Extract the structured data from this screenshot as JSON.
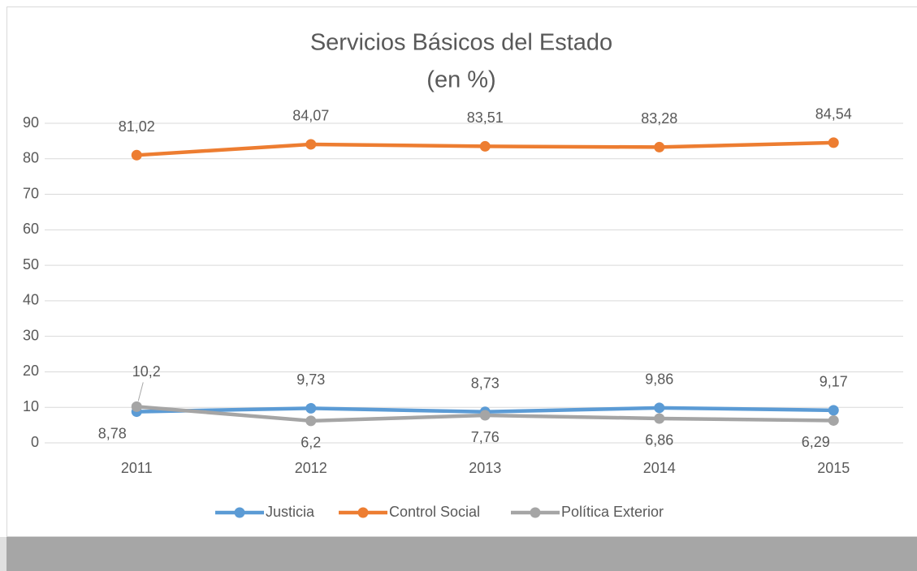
{
  "chart_data": {
    "type": "line",
    "title": "Servicios Básicos del Estado",
    "subtitle": "(en %)",
    "categories": [
      "2011",
      "2012",
      "2013",
      "2014",
      "2015"
    ],
    "series": [
      {
        "name": "Justicia",
        "color": "#5b9bd5",
        "values": [
          8.78,
          9.73,
          8.73,
          9.86,
          9.17
        ],
        "value_labels": [
          "8,78",
          "9,73",
          "8,73",
          "9,86",
          "9,17"
        ]
      },
      {
        "name": "Control Social",
        "color": "#ed7d31",
        "values": [
          81.02,
          84.07,
          83.51,
          83.28,
          84.54
        ],
        "value_labels": [
          "81,02",
          "84,07",
          "83,51",
          "83,28",
          "84,54"
        ]
      },
      {
        "name": "Política Exterior",
        "color": "#a5a5a5",
        "values": [
          10.2,
          6.2,
          7.76,
          6.86,
          6.29
        ],
        "value_labels": [
          "10,2",
          "6,2",
          "7,76",
          "6,86",
          "6,29"
        ]
      }
    ],
    "ylim": [
      0,
      90
    ],
    "yticks": [
      0,
      10,
      20,
      30,
      40,
      50,
      60,
      70,
      80,
      90
    ],
    "grid": true,
    "legend": "bottom"
  }
}
